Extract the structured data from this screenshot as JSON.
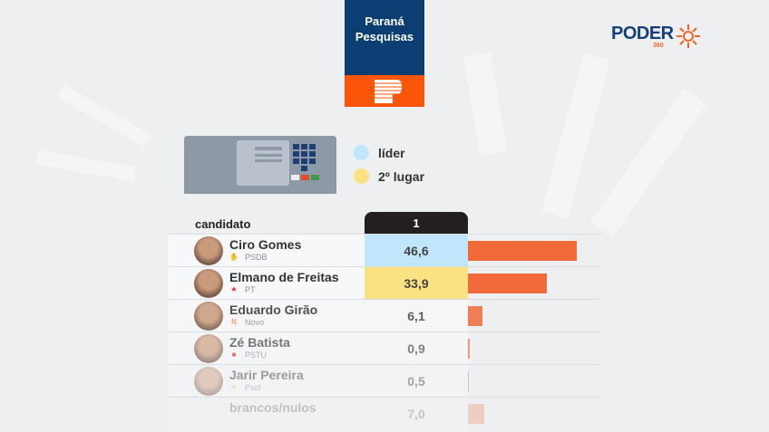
{
  "logo": {
    "institute": "Paraná Pesquisas",
    "brand": "PODER",
    "brand_sub": "360"
  },
  "legend": [
    {
      "label": "líder",
      "color": "#bfe6fa"
    },
    {
      "label": "2º lugar",
      "color": "#fae283"
    }
  ],
  "table": {
    "header": "candidato",
    "column": "1"
  },
  "chart_data": {
    "type": "bar",
    "title": "",
    "columns": [
      "candidato",
      "1"
    ],
    "rows": [
      {
        "name": "Ciro Gomes",
        "party": "PSDB",
        "value": 46.6,
        "label": "46,6",
        "highlight": "#bfe6fa"
      },
      {
        "name": "Elmano de Freitas",
        "party": "PT",
        "value": 33.9,
        "label": "33,9",
        "highlight": "#fae283"
      },
      {
        "name": "Eduardo Girão",
        "party": "Novo",
        "value": 6.1,
        "label": "6,1"
      },
      {
        "name": "Zé Batista",
        "party": "PSTU",
        "value": 0.9,
        "label": "0,9"
      },
      {
        "name": "Jarir Pereira",
        "party": "Psol",
        "value": 0.5,
        "label": "0,5"
      },
      {
        "name": "brancos/nulos",
        "party": "",
        "value": 7.0,
        "label": "7,0"
      }
    ],
    "bar_color": "#f06a3a"
  }
}
